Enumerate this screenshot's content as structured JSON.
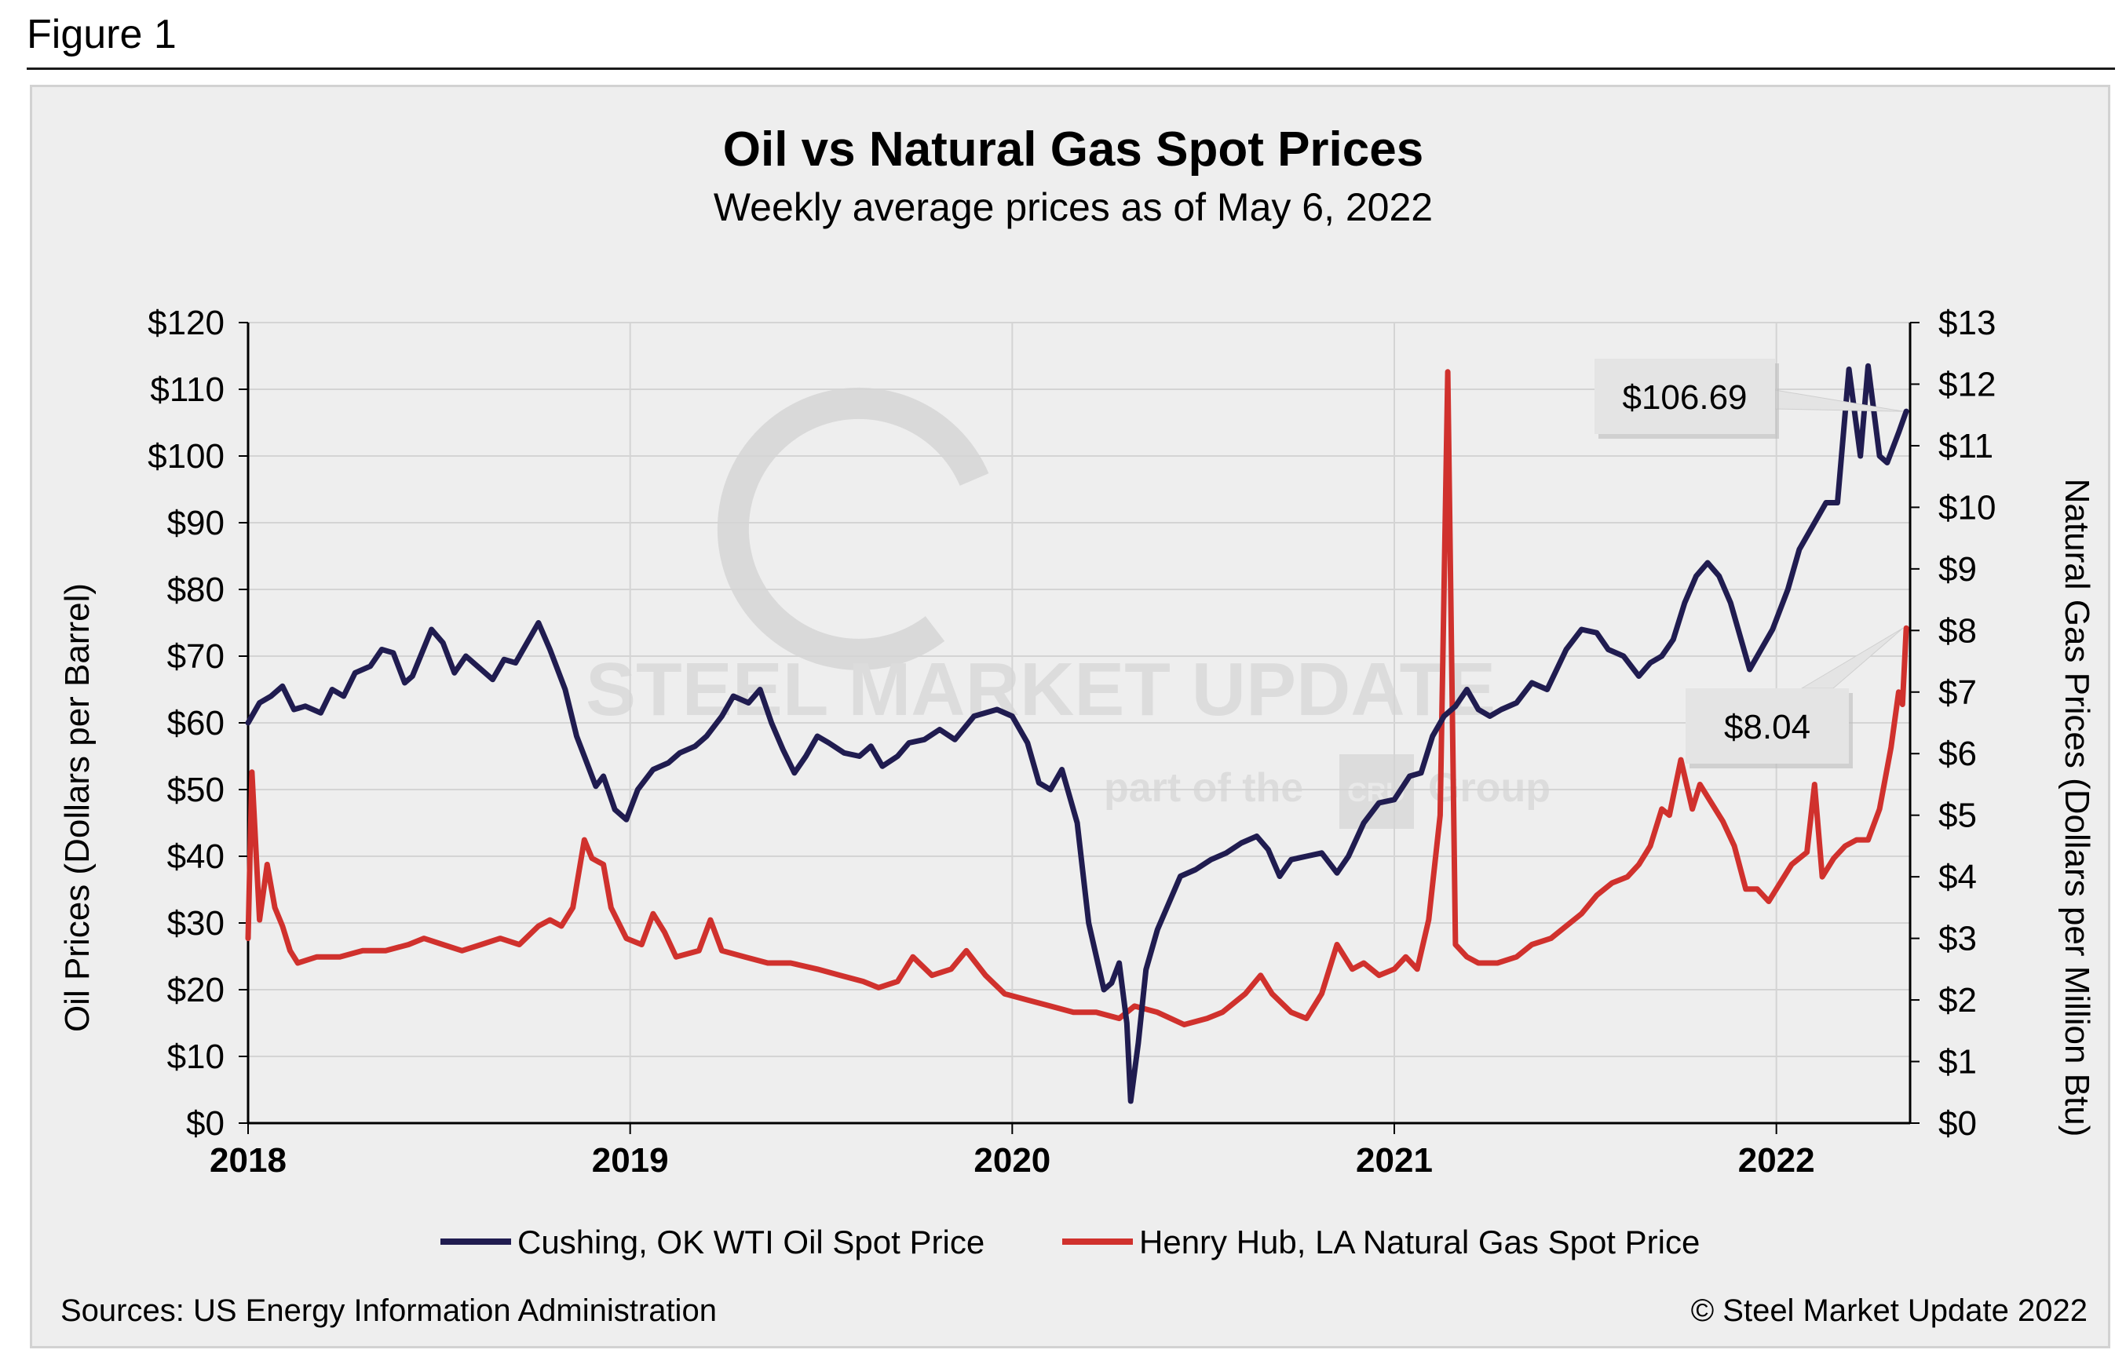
{
  "figure_label": "Figure 1",
  "footer": {
    "source": "Sources: US Energy Information Administration",
    "copyright": "© Steel Market Update 2022"
  },
  "watermark": {
    "brand": "STEEL MARKET UPDATE",
    "tagline_start": "part of the",
    "logo_text": "CRU",
    "tagline_end": "Group"
  },
  "colors": {
    "oil": "#201c50",
    "gas": "#d0312d",
    "grid": "#d4d4d4",
    "panel": "#eeeeee"
  },
  "chart_data": {
    "type": "line",
    "title": "Oil vs Natural Gas Spot Prices",
    "subtitle": "Weekly average prices as of May 6, 2022",
    "x_ticks": [
      "2018",
      "2019",
      "2020",
      "2021",
      "2022"
    ],
    "x_range": [
      2018.0,
      2022.35
    ],
    "y_left": {
      "label": "Oil Prices (Dollars per Barrel)",
      "range": [
        0,
        120
      ],
      "ticks": [
        "$0",
        "$10",
        "$20",
        "$30",
        "$40",
        "$50",
        "$60",
        "$70",
        "$80",
        "$90",
        "$100",
        "$110",
        "$120"
      ]
    },
    "y_right": {
      "label": "Natural Gas Prices (Dollars per Million Btu)",
      "range": [
        0,
        13
      ],
      "ticks": [
        "$0",
        "$1",
        "$2",
        "$3",
        "$4",
        "$5",
        "$6",
        "$7",
        "$8",
        "$9",
        "$10",
        "$11",
        "$12",
        "$13"
      ]
    },
    "legend": [
      "Cushing, OK WTI Oil Spot Price",
      "Henry Hub, LA Natural Gas Spot Price"
    ],
    "annotations": [
      {
        "text": "$106.69",
        "series": "Cushing, OK WTI Oil Spot Price",
        "x": 2022.34,
        "y": 106.69
      },
      {
        "text": "$8.04",
        "series": "Henry Hub, LA Natural Gas Spot Price",
        "x": 2022.34,
        "y": 8.04
      }
    ],
    "series": [
      {
        "name": "Cushing, OK WTI Oil Spot Price",
        "axis": "left",
        "points": [
          [
            2018.0,
            60
          ],
          [
            2018.03,
            63
          ],
          [
            2018.06,
            64
          ],
          [
            2018.09,
            65.5
          ],
          [
            2018.12,
            62
          ],
          [
            2018.15,
            62.5
          ],
          [
            2018.19,
            61.5
          ],
          [
            2018.22,
            65
          ],
          [
            2018.25,
            64
          ],
          [
            2018.28,
            67.5
          ],
          [
            2018.32,
            68.5
          ],
          [
            2018.35,
            71
          ],
          [
            2018.38,
            70.5
          ],
          [
            2018.41,
            66
          ],
          [
            2018.43,
            67
          ],
          [
            2018.48,
            74
          ],
          [
            2018.51,
            72
          ],
          [
            2018.54,
            67.5
          ],
          [
            2018.57,
            70
          ],
          [
            2018.61,
            68
          ],
          [
            2018.64,
            66.5
          ],
          [
            2018.67,
            69.5
          ],
          [
            2018.7,
            69
          ],
          [
            2018.73,
            72
          ],
          [
            2018.76,
            75
          ],
          [
            2018.79,
            71
          ],
          [
            2018.83,
            65
          ],
          [
            2018.86,
            58
          ],
          [
            2018.88,
            55
          ],
          [
            2018.91,
            50.5
          ],
          [
            2018.93,
            52
          ],
          [
            2018.96,
            47
          ],
          [
            2018.99,
            45.5
          ],
          [
            2019.02,
            50
          ],
          [
            2019.06,
            53
          ],
          [
            2019.1,
            54
          ],
          [
            2019.13,
            55.5
          ],
          [
            2019.17,
            56.5
          ],
          [
            2019.2,
            58
          ],
          [
            2019.24,
            61
          ],
          [
            2019.27,
            64
          ],
          [
            2019.31,
            63
          ],
          [
            2019.34,
            65
          ],
          [
            2019.37,
            60
          ],
          [
            2019.4,
            56
          ],
          [
            2019.43,
            52.5
          ],
          [
            2019.46,
            55
          ],
          [
            2019.49,
            58
          ],
          [
            2019.52,
            57
          ],
          [
            2019.56,
            55.5
          ],
          [
            2019.6,
            55
          ],
          [
            2019.63,
            56.5
          ],
          [
            2019.66,
            53.5
          ],
          [
            2019.7,
            55
          ],
          [
            2019.73,
            57
          ],
          [
            2019.77,
            57.5
          ],
          [
            2019.81,
            59
          ],
          [
            2019.85,
            57.5
          ],
          [
            2019.9,
            61
          ],
          [
            2019.96,
            62
          ],
          [
            2020.0,
            61
          ],
          [
            2020.04,
            57
          ],
          [
            2020.07,
            51
          ],
          [
            2020.1,
            50
          ],
          [
            2020.13,
            53
          ],
          [
            2020.17,
            45
          ],
          [
            2020.2,
            30
          ],
          [
            2020.24,
            20
          ],
          [
            2020.26,
            21
          ],
          [
            2020.28,
            24
          ],
          [
            2020.3,
            15
          ],
          [
            2020.31,
            3.3
          ],
          [
            2020.33,
            12
          ],
          [
            2020.35,
            23
          ],
          [
            2020.38,
            29
          ],
          [
            2020.41,
            33
          ],
          [
            2020.44,
            37
          ],
          [
            2020.48,
            38
          ],
          [
            2020.52,
            39.5
          ],
          [
            2020.56,
            40.5
          ],
          [
            2020.6,
            42
          ],
          [
            2020.64,
            43
          ],
          [
            2020.67,
            41
          ],
          [
            2020.7,
            37
          ],
          [
            2020.73,
            39.5
          ],
          [
            2020.77,
            40
          ],
          [
            2020.81,
            40.5
          ],
          [
            2020.85,
            37.5
          ],
          [
            2020.88,
            40
          ],
          [
            2020.92,
            45
          ],
          [
            2020.96,
            48
          ],
          [
            2021.0,
            48.5
          ],
          [
            2021.04,
            52
          ],
          [
            2021.07,
            52.5
          ],
          [
            2021.1,
            58
          ],
          [
            2021.13,
            61
          ],
          [
            2021.16,
            62.5
          ],
          [
            2021.19,
            65
          ],
          [
            2021.22,
            62
          ],
          [
            2021.25,
            61
          ],
          [
            2021.28,
            62
          ],
          [
            2021.32,
            63
          ],
          [
            2021.36,
            66
          ],
          [
            2021.4,
            65
          ],
          [
            2021.45,
            71
          ],
          [
            2021.49,
            74
          ],
          [
            2021.53,
            73.5
          ],
          [
            2021.56,
            71
          ],
          [
            2021.6,
            70
          ],
          [
            2021.64,
            67
          ],
          [
            2021.67,
            69
          ],
          [
            2021.7,
            70
          ],
          [
            2021.73,
            72.5
          ],
          [
            2021.76,
            78
          ],
          [
            2021.79,
            82
          ],
          [
            2021.82,
            84
          ],
          [
            2021.85,
            82
          ],
          [
            2021.88,
            78
          ],
          [
            2021.91,
            72
          ],
          [
            2021.93,
            68
          ],
          [
            2021.96,
            71
          ],
          [
            2021.99,
            74
          ],
          [
            2022.03,
            80
          ],
          [
            2022.06,
            86
          ],
          [
            2022.09,
            89
          ],
          [
            2022.13,
            93
          ],
          [
            2022.16,
            93
          ],
          [
            2022.19,
            113
          ],
          [
            2022.22,
            100
          ],
          [
            2022.24,
            113.5
          ],
          [
            2022.27,
            100
          ],
          [
            2022.29,
            99
          ],
          [
            2022.32,
            103.5
          ],
          [
            2022.34,
            106.69
          ]
        ]
      },
      {
        "name": "Henry Hub, LA Natural Gas Spot Price",
        "axis": "right",
        "points": [
          [
            2018.0,
            3.0
          ],
          [
            2018.01,
            5.7
          ],
          [
            2018.03,
            3.3
          ],
          [
            2018.05,
            4.2
          ],
          [
            2018.07,
            3.5
          ],
          [
            2018.09,
            3.2
          ],
          [
            2018.11,
            2.8
          ],
          [
            2018.13,
            2.6
          ],
          [
            2018.18,
            2.7
          ],
          [
            2018.24,
            2.7
          ],
          [
            2018.3,
            2.8
          ],
          [
            2018.36,
            2.8
          ],
          [
            2018.42,
            2.9
          ],
          [
            2018.46,
            3.0
          ],
          [
            2018.51,
            2.9
          ],
          [
            2018.56,
            2.8
          ],
          [
            2018.61,
            2.9
          ],
          [
            2018.66,
            3.0
          ],
          [
            2018.71,
            2.9
          ],
          [
            2018.76,
            3.2
          ],
          [
            2018.79,
            3.3
          ],
          [
            2018.82,
            3.2
          ],
          [
            2018.85,
            3.5
          ],
          [
            2018.88,
            4.6
          ],
          [
            2018.9,
            4.3
          ],
          [
            2018.93,
            4.2
          ],
          [
            2018.95,
            3.5
          ],
          [
            2018.99,
            3.0
          ],
          [
            2019.03,
            2.9
          ],
          [
            2019.06,
            3.4
          ],
          [
            2019.09,
            3.1
          ],
          [
            2019.12,
            2.7
          ],
          [
            2019.18,
            2.8
          ],
          [
            2019.21,
            3.3
          ],
          [
            2019.24,
            2.8
          ],
          [
            2019.3,
            2.7
          ],
          [
            2019.36,
            2.6
          ],
          [
            2019.42,
            2.6
          ],
          [
            2019.49,
            2.5
          ],
          [
            2019.55,
            2.4
          ],
          [
            2019.61,
            2.3
          ],
          [
            2019.65,
            2.2
          ],
          [
            2019.7,
            2.3
          ],
          [
            2019.74,
            2.7
          ],
          [
            2019.79,
            2.4
          ],
          [
            2019.84,
            2.5
          ],
          [
            2019.88,
            2.8
          ],
          [
            2019.93,
            2.4
          ],
          [
            2019.98,
            2.1
          ],
          [
            2020.04,
            2.0
          ],
          [
            2020.1,
            1.9
          ],
          [
            2020.16,
            1.8
          ],
          [
            2020.22,
            1.8
          ],
          [
            2020.28,
            1.7
          ],
          [
            2020.32,
            1.9
          ],
          [
            2020.38,
            1.8
          ],
          [
            2020.45,
            1.6
          ],
          [
            2020.51,
            1.7
          ],
          [
            2020.55,
            1.8
          ],
          [
            2020.61,
            2.1
          ],
          [
            2020.65,
            2.4
          ],
          [
            2020.68,
            2.1
          ],
          [
            2020.73,
            1.8
          ],
          [
            2020.77,
            1.7
          ],
          [
            2020.81,
            2.1
          ],
          [
            2020.85,
            2.9
          ],
          [
            2020.89,
            2.5
          ],
          [
            2020.92,
            2.6
          ],
          [
            2020.96,
            2.4
          ],
          [
            2021.0,
            2.5
          ],
          [
            2021.03,
            2.7
          ],
          [
            2021.06,
            2.5
          ],
          [
            2021.09,
            3.3
          ],
          [
            2021.12,
            5.0
          ],
          [
            2021.14,
            12.2
          ],
          [
            2021.16,
            2.9
          ],
          [
            2021.19,
            2.7
          ],
          [
            2021.22,
            2.6
          ],
          [
            2021.27,
            2.6
          ],
          [
            2021.32,
            2.7
          ],
          [
            2021.36,
            2.9
          ],
          [
            2021.41,
            3.0
          ],
          [
            2021.45,
            3.2
          ],
          [
            2021.49,
            3.4
          ],
          [
            2021.53,
            3.7
          ],
          [
            2021.57,
            3.9
          ],
          [
            2021.61,
            4.0
          ],
          [
            2021.64,
            4.2
          ],
          [
            2021.67,
            4.5
          ],
          [
            2021.7,
            5.1
          ],
          [
            2021.72,
            5.0
          ],
          [
            2021.75,
            5.9
          ],
          [
            2021.78,
            5.1
          ],
          [
            2021.8,
            5.5
          ],
          [
            2021.83,
            5.2
          ],
          [
            2021.86,
            4.9
          ],
          [
            2021.89,
            4.5
          ],
          [
            2021.92,
            3.8
          ],
          [
            2021.95,
            3.8
          ],
          [
            2021.98,
            3.6
          ],
          [
            2022.01,
            3.9
          ],
          [
            2022.04,
            4.2
          ],
          [
            2022.08,
            4.4
          ],
          [
            2022.1,
            5.5
          ],
          [
            2022.12,
            4.0
          ],
          [
            2022.15,
            4.3
          ],
          [
            2022.18,
            4.5
          ],
          [
            2022.21,
            4.6
          ],
          [
            2022.24,
            4.6
          ],
          [
            2022.27,
            5.1
          ],
          [
            2022.3,
            6.1
          ],
          [
            2022.32,
            7.0
          ],
          [
            2022.33,
            6.8
          ],
          [
            2022.34,
            8.04
          ]
        ]
      }
    ]
  }
}
